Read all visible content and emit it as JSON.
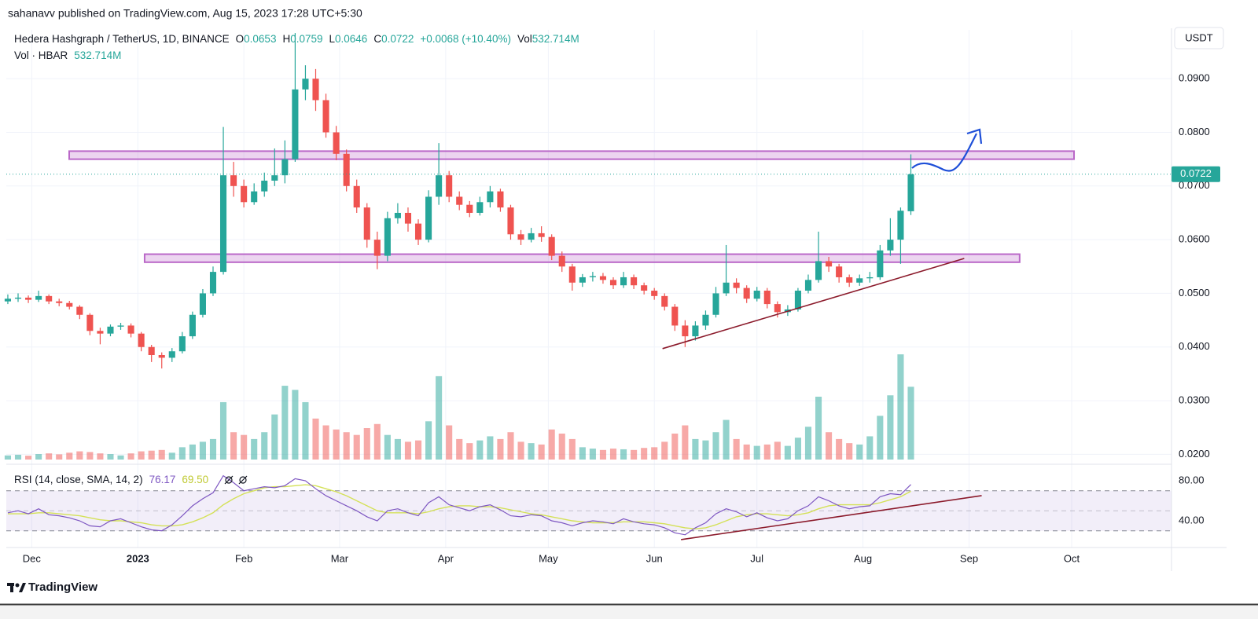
{
  "header": {
    "published": "sahanavv published on TradingView.com, Aug 15, 2023 17:28 UTC+5:30",
    "currency": "USDT",
    "footer": "TradingView"
  },
  "chart_data": {
    "type": "candlestick",
    "title": "Hedera Hashgraph / TetherUS, 1D, BINANCE",
    "legend": {
      "open": "O",
      "high": "H",
      "low": "L",
      "close": "C",
      "change": "+0.0068 (+10.40%)",
      "volume": "Vol",
      "volume_value": "532.714M"
    },
    "volume_title": "Vol · HBAR",
    "up_color": "#26a69a",
    "down_color": "#ef5350",
    "candles": [
      [
        0.0485,
        0.0498,
        0.048,
        0.049
      ],
      [
        0.049,
        0.05,
        0.0484,
        0.0492
      ],
      [
        0.0492,
        0.0496,
        0.0482,
        0.0488
      ],
      [
        0.0488,
        0.0505,
        0.0484,
        0.0495
      ],
      [
        0.0495,
        0.0498,
        0.048,
        0.0485
      ],
      [
        0.0485,
        0.049,
        0.0476,
        0.0482
      ],
      [
        0.0482,
        0.0486,
        0.047,
        0.0475
      ],
      [
        0.0475,
        0.0478,
        0.0452,
        0.046
      ],
      [
        0.046,
        0.0463,
        0.0422,
        0.043
      ],
      [
        0.043,
        0.0436,
        0.0405,
        0.0425
      ],
      [
        0.0425,
        0.0442,
        0.042,
        0.0438
      ],
      [
        0.0438,
        0.0445,
        0.0432,
        0.044
      ],
      [
        0.044,
        0.0444,
        0.0418,
        0.0425
      ],
      [
        0.0425,
        0.0428,
        0.0392,
        0.04
      ],
      [
        0.04,
        0.0404,
        0.0372,
        0.0385
      ],
      [
        0.0385,
        0.039,
        0.036,
        0.038
      ],
      [
        0.038,
        0.0398,
        0.0372,
        0.0392
      ],
      [
        0.0392,
        0.0428,
        0.0388,
        0.042
      ],
      [
        0.042,
        0.0466,
        0.0415,
        0.046
      ],
      [
        0.046,
        0.0508,
        0.0455,
        0.05
      ],
      [
        0.05,
        0.055,
        0.0495,
        0.054
      ],
      [
        0.054,
        0.081,
        0.0535,
        0.072
      ],
      [
        0.072,
        0.0745,
        0.068,
        0.07
      ],
      [
        0.07,
        0.0712,
        0.066,
        0.067
      ],
      [
        0.067,
        0.0705,
        0.0665,
        0.069
      ],
      [
        0.069,
        0.0725,
        0.068,
        0.071
      ],
      [
        0.071,
        0.077,
        0.07,
        0.072
      ],
      [
        0.072,
        0.0785,
        0.0705,
        0.075
      ],
      [
        0.075,
        0.0985,
        0.0745,
        0.088
      ],
      [
        0.088,
        0.0925,
        0.086,
        0.09
      ],
      [
        0.09,
        0.0918,
        0.084,
        0.086
      ],
      [
        0.086,
        0.0872,
        0.079,
        0.08
      ],
      [
        0.08,
        0.0812,
        0.0748,
        0.076
      ],
      [
        0.076,
        0.0768,
        0.069,
        0.07
      ],
      [
        0.07,
        0.0712,
        0.065,
        0.066
      ],
      [
        0.066,
        0.0668,
        0.0585,
        0.06
      ],
      [
        0.06,
        0.0615,
        0.0545,
        0.057
      ],
      [
        0.057,
        0.0652,
        0.056,
        0.064
      ],
      [
        0.064,
        0.0668,
        0.063,
        0.065
      ],
      [
        0.065,
        0.066,
        0.0615,
        0.063
      ],
      [
        0.063,
        0.0638,
        0.059,
        0.06
      ],
      [
        0.06,
        0.0692,
        0.0595,
        0.068
      ],
      [
        0.068,
        0.078,
        0.0665,
        0.072
      ],
      [
        0.072,
        0.0728,
        0.067,
        0.068
      ],
      [
        0.068,
        0.069,
        0.0655,
        0.0665
      ],
      [
        0.0665,
        0.0672,
        0.0642,
        0.065
      ],
      [
        0.065,
        0.068,
        0.0645,
        0.067
      ],
      [
        0.067,
        0.07,
        0.066,
        0.069
      ],
      [
        0.069,
        0.0695,
        0.0652,
        0.066
      ],
      [
        0.066,
        0.0665,
        0.06,
        0.061
      ],
      [
        0.061,
        0.0618,
        0.059,
        0.06
      ],
      [
        0.06,
        0.0622,
        0.0595,
        0.0612
      ],
      [
        0.0612,
        0.0625,
        0.0596,
        0.0605
      ],
      [
        0.0605,
        0.061,
        0.0562,
        0.057
      ],
      [
        0.057,
        0.0578,
        0.054,
        0.055
      ],
      [
        0.055,
        0.0555,
        0.0505,
        0.052
      ],
      [
        0.052,
        0.0536,
        0.0512,
        0.053
      ],
      [
        0.053,
        0.054,
        0.0522,
        0.0532
      ],
      [
        0.0532,
        0.0538,
        0.0518,
        0.0525
      ],
      [
        0.0525,
        0.053,
        0.0508,
        0.0515
      ],
      [
        0.0515,
        0.054,
        0.051,
        0.053
      ],
      [
        0.053,
        0.0535,
        0.0508,
        0.0515
      ],
      [
        0.0515,
        0.052,
        0.0498,
        0.0505
      ],
      [
        0.0505,
        0.051,
        0.0488,
        0.0495
      ],
      [
        0.0495,
        0.05,
        0.0468,
        0.0475
      ],
      [
        0.0475,
        0.048,
        0.043,
        0.044
      ],
      [
        0.044,
        0.045,
        0.04,
        0.042
      ],
      [
        0.042,
        0.0448,
        0.0412,
        0.044
      ],
      [
        0.044,
        0.0468,
        0.0432,
        0.046
      ],
      [
        0.046,
        0.0512,
        0.0455,
        0.05
      ],
      [
        0.05,
        0.059,
        0.0495,
        0.052
      ],
      [
        0.052,
        0.0528,
        0.05,
        0.051
      ],
      [
        0.051,
        0.0515,
        0.0482,
        0.049
      ],
      [
        0.049,
        0.0512,
        0.0485,
        0.0505
      ],
      [
        0.0505,
        0.051,
        0.0472,
        0.048
      ],
      [
        0.048,
        0.0485,
        0.0455,
        0.0465
      ],
      [
        0.0465,
        0.0478,
        0.0458,
        0.047
      ],
      [
        0.047,
        0.051,
        0.0466,
        0.0505
      ],
      [
        0.0505,
        0.0535,
        0.05,
        0.0525
      ],
      [
        0.0525,
        0.0615,
        0.052,
        0.056
      ],
      [
        0.056,
        0.0568,
        0.054,
        0.055
      ],
      [
        0.055,
        0.0555,
        0.052,
        0.053
      ],
      [
        0.053,
        0.0535,
        0.0512,
        0.052
      ],
      [
        0.052,
        0.0535,
        0.0514,
        0.0528
      ],
      [
        0.0528,
        0.054,
        0.052,
        0.053
      ],
      [
        0.053,
        0.059,
        0.0525,
        0.058
      ],
      [
        0.058,
        0.064,
        0.057,
        0.06
      ],
      [
        0.06,
        0.066,
        0.0555,
        0.0654
      ],
      [
        0.0653,
        0.0759,
        0.0646,
        0.0722
      ]
    ],
    "volumes": [
      30,
      35,
      28,
      40,
      45,
      38,
      50,
      60,
      55,
      45,
      40,
      30,
      45,
      60,
      65,
      70,
      50,
      90,
      110,
      130,
      150,
      420,
      200,
      180,
      150,
      200,
      330,
      540,
      510,
      420,
      300,
      250,
      220,
      200,
      180,
      230,
      260,
      180,
      150,
      130,
      140,
      280,
      610,
      250,
      150,
      120,
      140,
      170,
      150,
      200,
      130,
      120,
      110,
      220,
      190,
      150,
      90,
      80,
      70,
      80,
      75,
      70,
      85,
      90,
      130,
      190,
      250,
      150,
      140,
      200,
      290,
      150,
      110,
      100,
      110,
      130,
      100,
      160,
      240,
      460,
      200,
      150,
      120,
      110,
      170,
      320,
      470,
      770,
      532.714
    ],
    "volume_lim": [
      0,
      1150
    ],
    "xlim": [
      -0.15,
      113.4
    ],
    "xticks": [
      {
        "value": 2.33,
        "label": "Dec"
      },
      {
        "value": 12.67,
        "label": "2023"
      },
      {
        "value": 23,
        "label": "Feb"
      },
      {
        "value": 32.33,
        "label": "Mar"
      },
      {
        "value": 42.67,
        "label": "Apr"
      },
      {
        "value": 52.67,
        "label": "May"
      },
      {
        "value": 63,
        "label": "Jun"
      },
      {
        "value": 73,
        "label": "Jul"
      },
      {
        "value": 83.33,
        "label": "Aug"
      },
      {
        "value": 93.67,
        "label": "Sep"
      },
      {
        "value": 103.67,
        "label": "Oct"
      }
    ],
    "ylim": [
      0.0183,
      0.0991
    ],
    "yticks": [
      {
        "value": 0.02,
        "label": "0.0200"
      },
      {
        "value": 0.03,
        "label": "0.0300"
      },
      {
        "value": 0.04,
        "label": "0.0400"
      },
      {
        "value": 0.05,
        "label": "0.0500"
      },
      {
        "value": 0.06,
        "label": "0.0600"
      },
      {
        "value": 0.07,
        "label": "0.0700"
      },
      {
        "value": 0.08,
        "label": "0.0800"
      },
      {
        "value": 0.09,
        "label": "0.0900"
      }
    ],
    "grid": true,
    "zones": [
      {
        "ylim": [
          0.075,
          0.0765
        ],
        "xlim": [
          5.98,
          103.9
        ]
      },
      {
        "ylim": [
          0.0558,
          0.0573
        ],
        "xlim": [
          13.33,
          98.6
        ]
      }
    ],
    "zone_color": "#ba68c8",
    "trendline": {
      "x": [
        63.8,
        93.2
      ],
      "y": [
        0.0397,
        0.0565
      ],
      "color": "#8b1a2b"
    },
    "rsi": {
      "title": "RSI (14, close, SMA, 14, 2)",
      "values": [
        48,
        50,
        47,
        52,
        46,
        45,
        43,
        40,
        35,
        34,
        40,
        42,
        38,
        34,
        31,
        30,
        36,
        45,
        55,
        62,
        68,
        85,
        78,
        70,
        72,
        74,
        73,
        75,
        82,
        80,
        72,
        65,
        60,
        55,
        50,
        44,
        40,
        50,
        52,
        48,
        45,
        58,
        64,
        56,
        53,
        50,
        54,
        56,
        51,
        45,
        44,
        46,
        45,
        40,
        38,
        35,
        38,
        40,
        39,
        37,
        42,
        39,
        37,
        36,
        33,
        28,
        26,
        33,
        38,
        47,
        52,
        49,
        44,
        48,
        43,
        40,
        42,
        50,
        55,
        64,
        60,
        55,
        52,
        54,
        55,
        64,
        67,
        66,
        76.17
      ],
      "sma": [
        47,
        47,
        47,
        48,
        48,
        47,
        46,
        45,
        43,
        41,
        40,
        40,
        39,
        38,
        36,
        35,
        35,
        36,
        39,
        43,
        48,
        56,
        62,
        67,
        70,
        73,
        74,
        74,
        75,
        76,
        75,
        72,
        69,
        65,
        60,
        55,
        50,
        48,
        48,
        48,
        47,
        49,
        52,
        54,
        55,
        55,
        54,
        54,
        53,
        51,
        49,
        47,
        46,
        44,
        42,
        40,
        39,
        38,
        38,
        38,
        39,
        39,
        39,
        38,
        37,
        35,
        33,
        32,
        33,
        36,
        40,
        44,
        46,
        47,
        47,
        46,
        45,
        46,
        48,
        52,
        55,
        56,
        56,
        56,
        56,
        58,
        61,
        64,
        69.5
      ],
      "sma_label": "69.50",
      "ylim": [
        14.9,
        93.3
      ],
      "yticks": [
        {
          "value": 40,
          "label": "40.00"
        },
        {
          "value": 80,
          "label": "80.00"
        }
      ],
      "bands": [
        30,
        50,
        70
      ],
      "color": "#7e57c2",
      "sma_color": "#d4e157",
      "trendline": {
        "x": [
          65.6,
          94.9
        ],
        "y": [
          21.2,
          65.1
        ],
        "color": "#8b1a2b"
      }
    }
  }
}
